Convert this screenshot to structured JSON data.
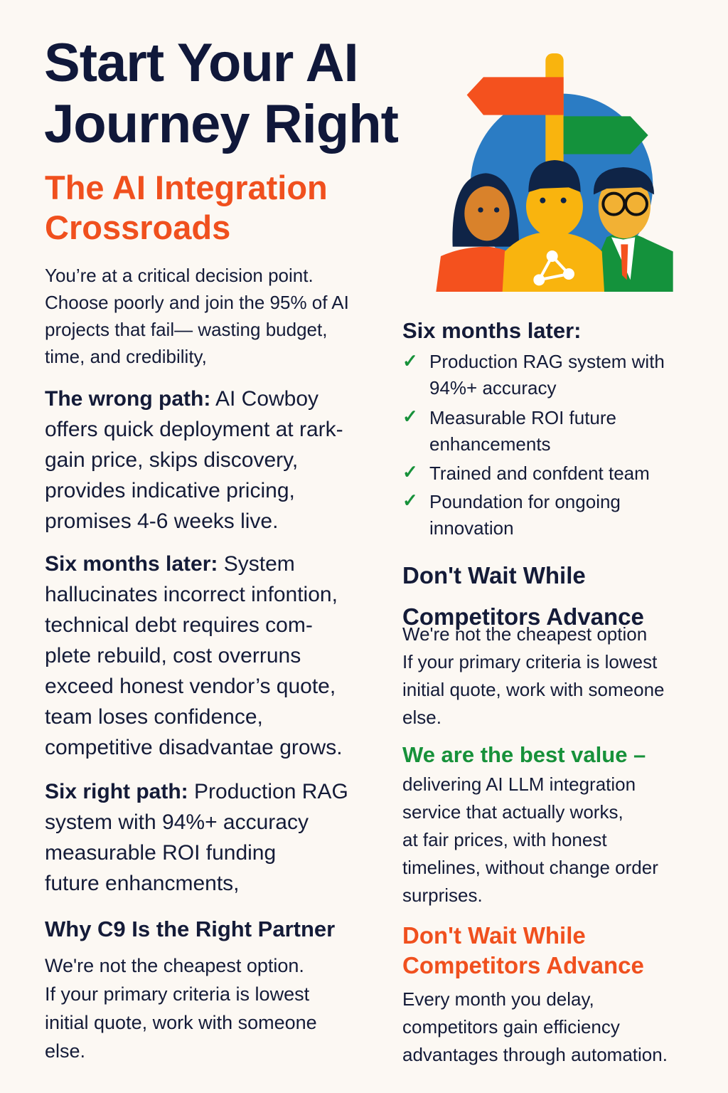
{
  "header": {
    "title": "Start Your AI\nJourney Right",
    "subtitle": "The AI Integration\nCrossroads"
  },
  "left": {
    "intro": "You’re at a critical decision point.\nChoose poorly and join the 95% of AI\nprojects that fail— wasting budget,\ntime, and credibility,",
    "wrong_path": {
      "lead": "The wrong path:",
      "text": " AI Cowboy\noffers quick deployment at rark-\ngain price, skips discovery,\nprovides indicative pricing,\npromises 4-6 weeks live."
    },
    "six_months": {
      "lead": "Six months later:",
      "text": " System\nhallucinates incorrect infontion,\ntechnical debt requires com-\nplete rebuild, cost overruns\nexceed honest vendor’s quote,\nteam loses confidence,\ncompetitive disadvantae grows."
    },
    "right_path": {
      "lead": "Six right path:",
      "text": " Production RAG\nsystem with 94%+ accuracy\nmeasurable ROI funding\nfuture enhancments,"
    },
    "why_heading": "Why C9 Is the Right Partner",
    "why_text": "We're not the cheapest option.\nIf your primary criteria is lowest\ninitial quote, work with someone\nelse."
  },
  "right": {
    "six_months_heading": "Six months later:",
    "checklist": [
      "Production RAG system with\n94%+ accuracy",
      "Measurable ROI future\nenhancements",
      "Trained and confdent team",
      "Poundation for ongoing\ninnovation"
    ],
    "dont_wait_heading": "Don't Wait While\nCompetitors Advance",
    "dont_wait_text": "We're not the cheapest option\nIf your primary criteria is lowest\ninitial quote, work with someone\nelse.",
    "best_value_heading": "We are the best value –",
    "best_value_text": "delivering AI LLM integration\nservice that actually works,\nat fair prices, with honest\ntimelines, without change order\nsurprises.",
    "dont_wait2_heading": "Don't Wait While\nCompetitors Advance",
    "dont_wait2_text": "Every month you delay,\ncompetitors gain efficiency\nadvantages through automation."
  },
  "illustration": {
    "icon": "crossroads-signpost-team-illustration",
    "colors": {
      "blue": "#2b7cc4",
      "orange": "#f4511e",
      "green": "#14923c",
      "yellow": "#f9b40e",
      "navy": "#0f2447"
    }
  },
  "colors": {
    "text": "#141b38",
    "accent_orange": "#f0501e",
    "accent_green": "#17913a",
    "background": "#fcf8f3"
  }
}
